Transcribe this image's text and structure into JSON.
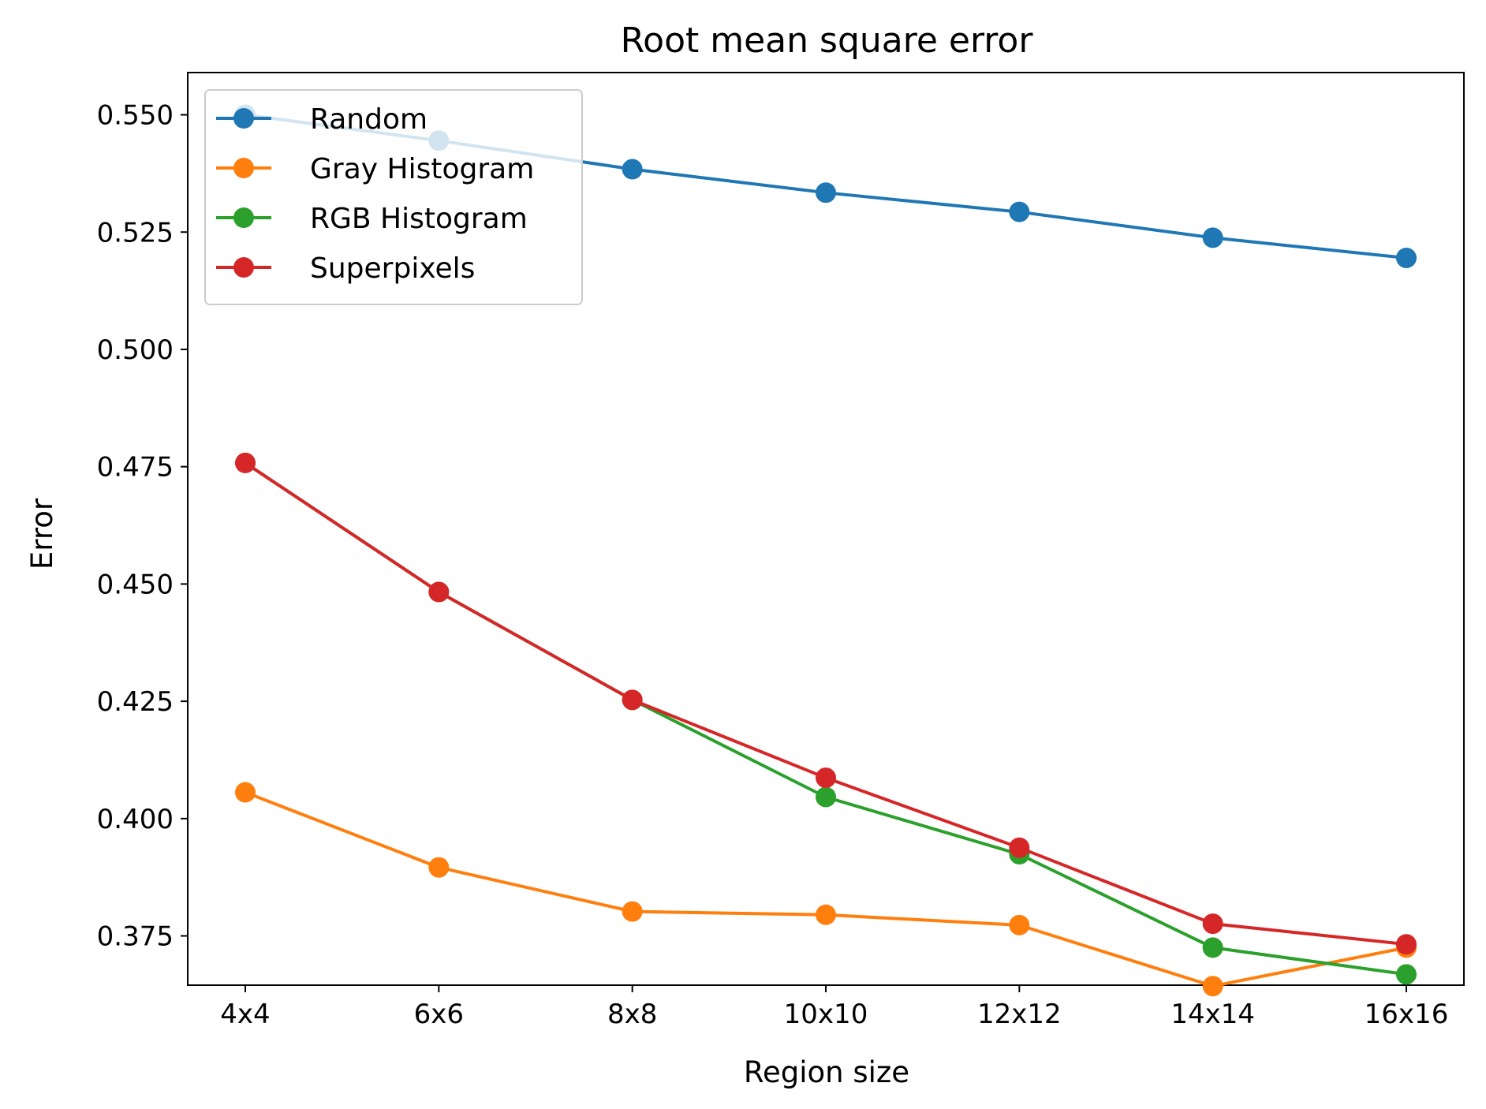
{
  "chart_data": {
    "type": "line",
    "title": "Root mean square error",
    "xlabel": "Region size",
    "ylabel": "Error",
    "categories": [
      "4x4",
      "6x6",
      "8x8",
      "10x10",
      "12x12",
      "14x14",
      "16x16"
    ],
    "ylim": [
      0.3645,
      0.559
    ],
    "yticks": [
      "0.375",
      "0.400",
      "0.425",
      "0.450",
      "0.475",
      "0.500",
      "0.525",
      "0.550"
    ],
    "grid": false,
    "legend_position": "upper-left",
    "series": [
      {
        "name": "Random",
        "color": "#1f77b4",
        "values": [
          0.55,
          0.5445,
          0.5384,
          0.5334,
          0.5293,
          0.5238,
          0.5195
        ]
      },
      {
        "name": "Gray Histogram",
        "color": "#ff7f0e",
        "values": [
          0.4056,
          0.3896,
          0.3802,
          0.3795,
          0.3773,
          0.3643,
          0.3725
        ]
      },
      {
        "name": "RGB Histogram",
        "color": "#2ca02c",
        "values": [
          0.4758,
          0.4483,
          0.4253,
          0.4046,
          0.3924,
          0.3725,
          0.3668
        ]
      },
      {
        "name": "Superpixels",
        "color": "#d62728",
        "values": [
          0.4758,
          0.4483,
          0.4253,
          0.4087,
          0.3938,
          0.3776,
          0.3732
        ]
      }
    ]
  }
}
